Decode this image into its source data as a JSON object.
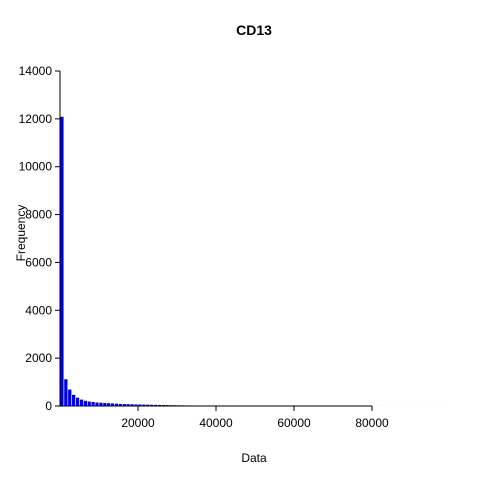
{
  "chart_data": {
    "type": "bar",
    "title": "CD13",
    "xlabel": "Data",
    "ylabel": "Frequency",
    "x_ticks": [
      20000,
      40000,
      60000,
      80000
    ],
    "y_ticks": [
      0,
      2000,
      4000,
      6000,
      8000,
      10000,
      12000,
      14000
    ],
    "xlim": [
      0,
      100000
    ],
    "ylim": [
      0,
      14000
    ],
    "bin_width": 1000,
    "values": [
      12100,
      1130,
      700,
      480,
      360,
      280,
      230,
      200,
      180,
      160,
      150,
      140,
      130,
      120,
      110,
      100,
      95,
      90,
      85,
      80,
      76,
      72,
      68,
      64,
      60,
      57,
      54,
      51,
      48,
      45,
      43,
      41,
      39,
      37,
      35,
      33,
      31,
      30,
      29,
      28,
      27,
      26,
      25,
      24,
      23,
      22,
      21,
      20,
      19,
      18,
      17,
      16,
      15,
      15,
      14,
      14,
      13,
      13,
      12,
      12,
      11,
      11,
      10,
      10,
      9,
      9,
      8,
      8,
      8,
      7,
      7,
      7,
      6,
      6,
      6,
      5,
      5,
      5,
      5,
      4,
      4,
      4,
      4,
      3,
      3,
      3,
      3,
      3,
      2,
      2,
      2,
      2,
      2,
      2,
      2,
      1,
      1,
      1,
      1,
      1
    ],
    "bar_color": "#0000ee",
    "bar_edge_color": "#ffffff",
    "grid": false,
    "legend": "none"
  }
}
